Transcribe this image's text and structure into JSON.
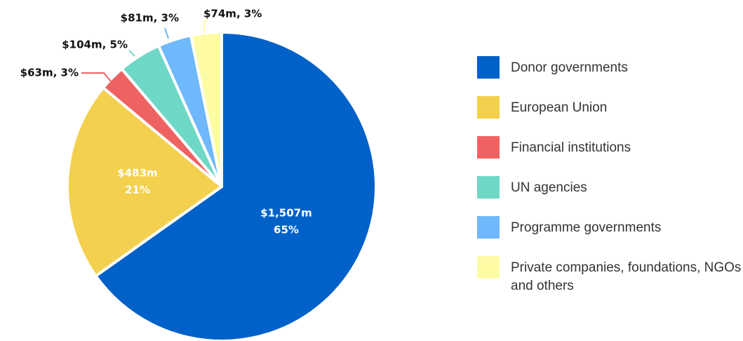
{
  "chart_data": {
    "type": "pie",
    "categories": [
      "Donor governments",
      "European Union",
      "Financial institutions",
      "UN agencies",
      "Programme governments",
      "Private companies, foundations, NGOs and others"
    ],
    "values": [
      1507,
      483,
      63,
      104,
      81,
      74
    ],
    "value_labels": [
      [
        "$1,507m",
        "65%"
      ],
      [
        "$483m",
        "21%"
      ],
      [
        "$63m, 3%"
      ],
      [
        "$104m, 5%"
      ],
      [
        "$81m, 3%"
      ],
      [
        "$74m, 3%"
      ]
    ],
    "colors": [
      "#0061c8",
      "#f3d04e",
      "#ef6262",
      "#6ed8c6",
      "#6fb8fc",
      "#fdfca4"
    ]
  }
}
